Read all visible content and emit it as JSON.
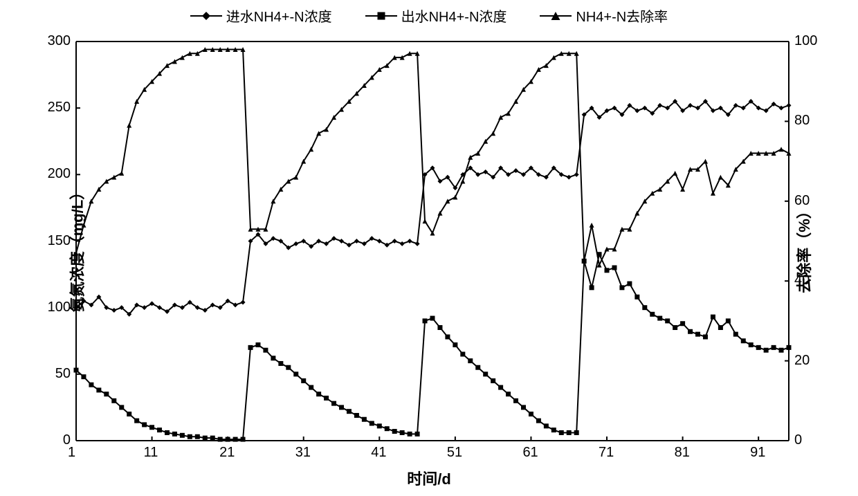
{
  "chart": {
    "type": "line-dual-axis",
    "background_color": "#ffffff",
    "axis_color": "#000000",
    "line_color": "#000000",
    "line_width": 2,
    "marker_size": 7,
    "font_family": "SimSun, Arial, sans-serif",
    "fontsize_legend": 20,
    "fontsize_ticks": 20,
    "fontsize_axis_label": 22,
    "legend": {
      "items": [
        {
          "label": "进水NH4+-N浓度",
          "marker": "diamond"
        },
        {
          "label": "出水NH4+-N浓度",
          "marker": "square"
        },
        {
          "label": "NH4+-N去除率",
          "marker": "triangle"
        }
      ]
    },
    "x_axis": {
      "label": "时间/d",
      "min": 1,
      "max": 95,
      "ticks": [
        1,
        11,
        21,
        31,
        41,
        51,
        61,
        71,
        81,
        91
      ],
      "tick_step": 10
    },
    "y1_axis": {
      "label": "氨氮浓度（mg/L）",
      "min": 0,
      "max": 300,
      "ticks": [
        0,
        50,
        100,
        150,
        200,
        250,
        300
      ],
      "tick_step": 50
    },
    "y2_axis": {
      "label": "去除率（%）",
      "min": 0,
      "max": 100,
      "ticks": [
        0,
        20,
        40,
        60,
        80,
        100
      ],
      "tick_step": 20
    },
    "series": [
      {
        "name": "influent_nh4n",
        "axis": "y1",
        "marker": "diamond",
        "color": "#000000",
        "x": [
          1,
          2,
          3,
          4,
          5,
          6,
          7,
          8,
          9,
          10,
          11,
          12,
          13,
          14,
          15,
          16,
          17,
          18,
          19,
          20,
          21,
          22,
          23,
          24,
          25,
          26,
          27,
          28,
          29,
          30,
          31,
          32,
          33,
          34,
          35,
          36,
          37,
          38,
          39,
          40,
          41,
          42,
          43,
          44,
          45,
          46,
          47,
          48,
          49,
          50,
          51,
          52,
          53,
          54,
          55,
          56,
          57,
          58,
          59,
          60,
          61,
          62,
          63,
          64,
          65,
          66,
          67,
          68,
          69,
          70,
          71,
          72,
          73,
          74,
          75,
          76,
          77,
          78,
          79,
          80,
          81,
          82,
          83,
          84,
          85,
          86,
          87,
          88,
          89,
          90,
          91,
          92,
          93,
          94,
          95
        ],
        "y": [
          100,
          105,
          102,
          108,
          100,
          98,
          100,
          95,
          102,
          100,
          103,
          100,
          97,
          102,
          100,
          104,
          100,
          98,
          102,
          100,
          105,
          102,
          104,
          150,
          155,
          148,
          152,
          150,
          145,
          148,
          150,
          146,
          150,
          148,
          152,
          150,
          147,
          150,
          148,
          152,
          150,
          147,
          150,
          148,
          150,
          148,
          200,
          205,
          195,
          198,
          190,
          200,
          205,
          200,
          202,
          198,
          205,
          200,
          203,
          200,
          205,
          200,
          198,
          205,
          200,
          198,
          200,
          245,
          250,
          243,
          248,
          250,
          245,
          252,
          248,
          250,
          246,
          252,
          250,
          255,
          248,
          252,
          250,
          255,
          248,
          250,
          245,
          252,
          250,
          255,
          250,
          248,
          253,
          250,
          252
        ]
      },
      {
        "name": "effluent_nh4n",
        "axis": "y1",
        "marker": "square",
        "color": "#000000",
        "x": [
          1,
          2,
          3,
          4,
          5,
          6,
          7,
          8,
          9,
          10,
          11,
          12,
          13,
          14,
          15,
          16,
          17,
          18,
          19,
          20,
          21,
          22,
          23,
          24,
          25,
          26,
          27,
          28,
          29,
          30,
          31,
          32,
          33,
          34,
          35,
          36,
          37,
          38,
          39,
          40,
          41,
          42,
          43,
          44,
          45,
          46,
          47,
          48,
          49,
          50,
          51,
          52,
          53,
          54,
          55,
          56,
          57,
          58,
          59,
          60,
          61,
          62,
          63,
          64,
          65,
          66,
          67,
          68,
          69,
          70,
          71,
          72,
          73,
          74,
          75,
          76,
          77,
          78,
          79,
          80,
          81,
          82,
          83,
          84,
          85,
          86,
          87,
          88,
          89,
          90,
          91,
          92,
          93,
          94,
          95
        ],
        "y": [
          53,
          48,
          42,
          38,
          35,
          30,
          25,
          20,
          15,
          12,
          10,
          8,
          6,
          5,
          4,
          3,
          3,
          2,
          2,
          1,
          1,
          1,
          1,
          70,
          72,
          68,
          62,
          58,
          55,
          50,
          45,
          40,
          35,
          32,
          28,
          25,
          22,
          19,
          16,
          13,
          11,
          9,
          7,
          6,
          5,
          5,
          90,
          92,
          85,
          78,
          72,
          65,
          60,
          55,
          50,
          45,
          40,
          35,
          30,
          25,
          20,
          15,
          11,
          8,
          6,
          6,
          6,
          135,
          115,
          140,
          128,
          130,
          115,
          118,
          108,
          100,
          95,
          92,
          90,
          85,
          88,
          82,
          80,
          78,
          93,
          85,
          90,
          80,
          75,
          72,
          70,
          68,
          70,
          68,
          70
        ]
      },
      {
        "name": "removal_rate",
        "axis": "y2",
        "marker": "triangle",
        "color": "#000000",
        "x": [
          1,
          2,
          3,
          4,
          5,
          6,
          7,
          8,
          9,
          10,
          11,
          12,
          13,
          14,
          15,
          16,
          17,
          18,
          19,
          20,
          21,
          22,
          23,
          24,
          25,
          26,
          27,
          28,
          29,
          30,
          31,
          32,
          33,
          34,
          35,
          36,
          37,
          38,
          39,
          40,
          41,
          42,
          43,
          44,
          45,
          46,
          47,
          48,
          49,
          50,
          51,
          52,
          53,
          54,
          55,
          56,
          57,
          58,
          59,
          60,
          61,
          62,
          63,
          64,
          65,
          66,
          67,
          68,
          69,
          70,
          71,
          72,
          73,
          74,
          75,
          76,
          77,
          78,
          79,
          80,
          81,
          82,
          83,
          84,
          85,
          86,
          87,
          88,
          89,
          90,
          91,
          92,
          93,
          94,
          95
        ],
        "y": [
          47,
          54,
          60,
          63,
          65,
          66,
          67,
          79,
          85,
          88,
          90,
          92,
          94,
          95,
          96,
          97,
          97,
          98,
          98,
          98,
          98,
          98,
          98,
          53,
          53,
          53,
          60,
          63,
          65,
          66,
          70,
          73,
          77,
          78,
          81,
          83,
          85,
          87,
          89,
          91,
          93,
          94,
          96,
          96,
          97,
          97,
          55,
          52,
          57,
          60,
          61,
          65,
          71,
          72,
          75,
          77,
          81,
          82,
          85,
          88,
          90,
          93,
          94,
          96,
          97,
          97,
          97,
          45,
          54,
          44,
          48,
          48,
          53,
          53,
          57,
          60,
          62,
          63,
          65,
          67,
          63,
          68,
          68,
          70,
          62,
          66,
          64,
          68,
          70,
          72,
          72,
          72,
          72,
          73,
          72
        ]
      }
    ]
  }
}
